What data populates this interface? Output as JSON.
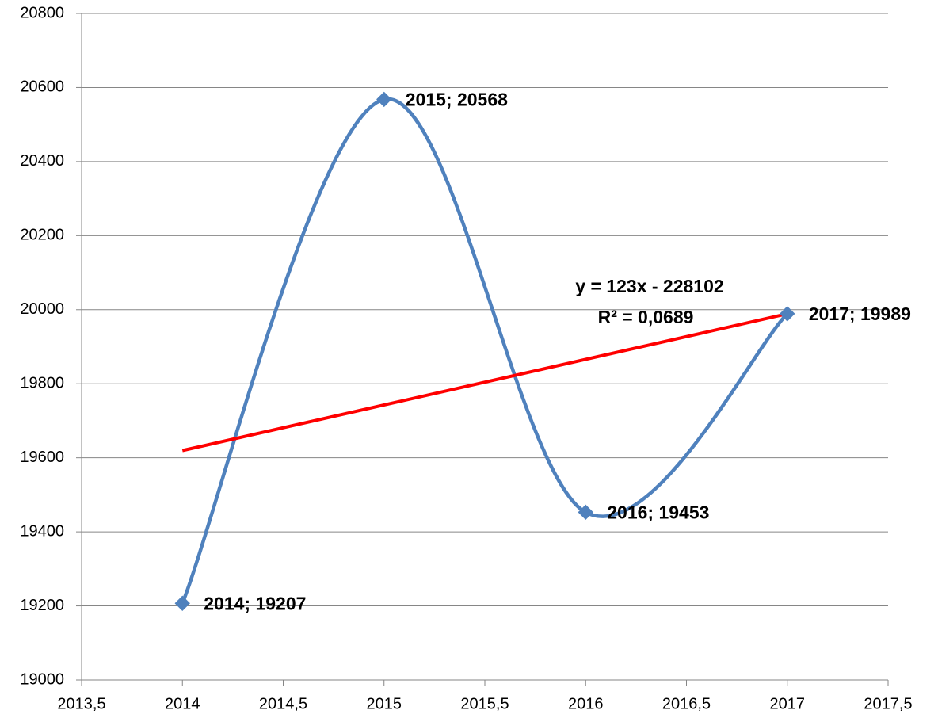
{
  "chart_data": {
    "type": "scatter",
    "series": [
      {
        "color": "#4f81bd",
        "x": [
          2014,
          2015,
          2016,
          2017
        ],
        "values": [
          19207,
          20568,
          19453,
          19989
        ],
        "value_labels": [
          "2014; 19207",
          "2015; 20568",
          "2016; 19453",
          "2017; 19989"
        ]
      }
    ],
    "trendline": {
      "color": "#ff0000",
      "x": [
        2014,
        2017
      ],
      "values": [
        19619.6,
        19988.9
      ]
    },
    "annotations": [
      "y = 123x - 228102",
      "R² = 0,0689"
    ],
    "xlim": [
      2013.5,
      2017.5
    ],
    "xticks": [
      {
        "value": 2013.5,
        "label": "2013,5"
      },
      2014,
      {
        "value": 2014.5,
        "label": "2014,5"
      },
      2015,
      {
        "value": 2015.5,
        "label": "2015,5"
      },
      2016,
      {
        "value": 2016.5,
        "label": "2016,5"
      },
      2017,
      {
        "value": 2017.5,
        "label": "2017,5"
      }
    ],
    "ylim": [
      19000,
      20800
    ],
    "yticks": [
      19000,
      19200,
      19400,
      19600,
      19800,
      20000,
      20200,
      20400,
      20600,
      20800
    ],
    "grid": true,
    "smooth": true
  }
}
